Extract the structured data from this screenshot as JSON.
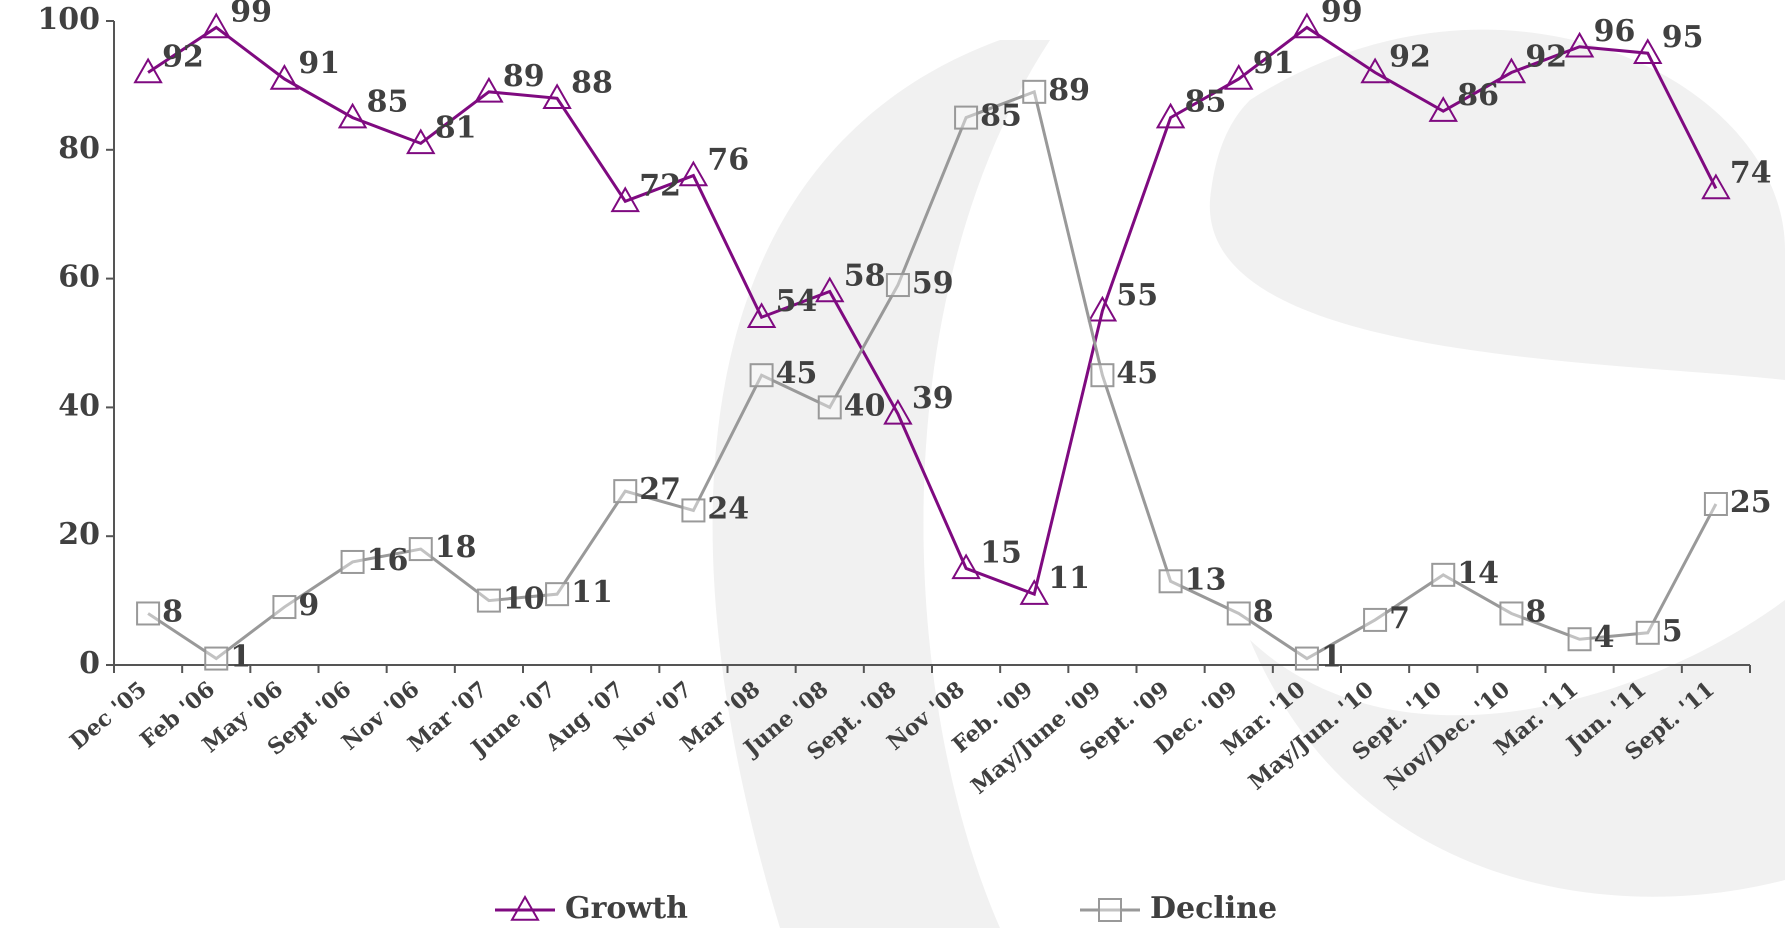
{
  "chart_data": {
    "type": "line",
    "categories": [
      "Dec '05",
      "Feb '06",
      "May '06",
      "Sept '06",
      "Nov '06",
      "Mar '07",
      "June '07",
      "Aug '07",
      "Nov '07",
      "Mar '08",
      "June '08",
      "Sept. '08",
      "Nov '08",
      "Feb. '09",
      "May/June '09",
      "Sept. '09",
      "Dec. '09",
      "Mar. '10",
      "May/Jun. '10",
      "Sept. '10",
      "Nov/Dec. '10",
      "Mar. '11",
      "Jun. '11",
      "Sept. '11"
    ],
    "series": [
      {
        "name": "Growth",
        "color": "#7f0a80",
        "marker": "triangle",
        "values": [
          92,
          99,
          91,
          85,
          81,
          89,
          88,
          72,
          76,
          54,
          58,
          39,
          15,
          11,
          55,
          85,
          91,
          99,
          92,
          86,
          92,
          96,
          95,
          74
        ]
      },
      {
        "name": "Decline",
        "color": "#999999",
        "marker": "square",
        "values": [
          8,
          1,
          9,
          16,
          18,
          10,
          11,
          27,
          24,
          45,
          40,
          59,
          85,
          89,
          45,
          13,
          8,
          1,
          7,
          14,
          8,
          4,
          5,
          25
        ]
      }
    ],
    "ylim": [
      0,
      100
    ],
    "yticks": [
      0,
      20,
      40,
      60,
      80,
      100
    ],
    "grid": false,
    "legend": "bottom"
  }
}
